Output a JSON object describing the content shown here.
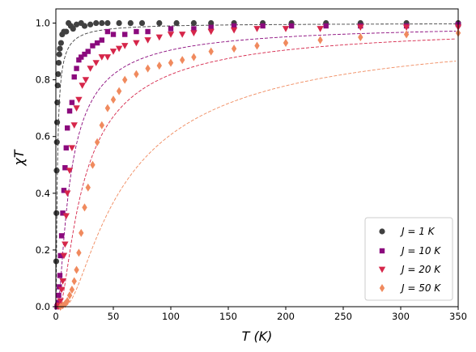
{
  "chart_data": {
    "type": "scatter",
    "xlabel": "T (K)",
    "ylabel": "χT",
    "xlim": [
      0,
      350
    ],
    "ylim": [
      0,
      1.05
    ],
    "xticks": [
      0,
      50,
      100,
      150,
      200,
      250,
      300,
      350
    ],
    "yticks": [
      0.0,
      0.2,
      0.4,
      0.6,
      0.8,
      1.0
    ],
    "grid": false,
    "legend_position": "bottom-right",
    "series": [
      {
        "name": "J = 1 K",
        "J": 1,
        "marker": "circle",
        "color": "#404040",
        "x": [
          0.3,
          0.5,
          0.7,
          0.9,
          1.1,
          1.3,
          1.6,
          2.0,
          2.5,
          3.0,
          3.5,
          4.5,
          5.5,
          7,
          9,
          11,
          13,
          15,
          18,
          22,
          25,
          30,
          35,
          40,
          45,
          55,
          65,
          75,
          90,
          105,
          120,
          135,
          155,
          180,
          205,
          235,
          265,
          305,
          350
        ],
        "y": [
          0.16,
          0.33,
          0.48,
          0.58,
          0.65,
          0.72,
          0.78,
          0.82,
          0.86,
          0.89,
          0.91,
          0.93,
          0.96,
          0.97,
          0.97,
          1.0,
          0.99,
          0.98,
          0.995,
          1.0,
          0.99,
          0.995,
          1.0,
          1.0,
          1.0,
          1.0,
          1.0,
          1.0,
          1.0,
          1.0,
          1.0,
          1.0,
          1.0,
          1.0,
          1.0,
          1.0,
          1.0,
          1.0,
          1.0
        ]
      },
      {
        "name": "J = 10 K",
        "J": 10,
        "marker": "square",
        "color": "#8b0a7d",
        "x": [
          1.0,
          1.5,
          2.0,
          2.5,
          3.0,
          3.5,
          4.0,
          5.0,
          6.0,
          7.0,
          8.0,
          9.0,
          10,
          12,
          14,
          16,
          18,
          20,
          22,
          25,
          28,
          32,
          36,
          40,
          45,
          50,
          60,
          70,
          80,
          100,
          120,
          135,
          155,
          180,
          205,
          235,
          265,
          305,
          350
        ],
        "y": [
          0.0,
          0.005,
          0.015,
          0.04,
          0.07,
          0.11,
          0.18,
          0.25,
          0.33,
          0.41,
          0.49,
          0.56,
          0.63,
          0.69,
          0.72,
          0.81,
          0.84,
          0.87,
          0.88,
          0.89,
          0.9,
          0.92,
          0.93,
          0.94,
          0.97,
          0.96,
          0.96,
          0.97,
          0.97,
          0.98,
          0.98,
          0.985,
          0.99,
          0.99,
          0.99,
          0.99,
          0.99,
          0.99,
          0.995
        ]
      },
      {
        "name": "J = 20 K",
        "J": 20,
        "marker": "triangle-down",
        "color": "#d6264a",
        "x": [
          2,
          3,
          4,
          5,
          6,
          7,
          8,
          9,
          10,
          12,
          14,
          16,
          18,
          20,
          23,
          26,
          30,
          35,
          40,
          45,
          50,
          55,
          60,
          70,
          80,
          90,
          100,
          110,
          120,
          135,
          155,
          175,
          200,
          230,
          265,
          305,
          350
        ],
        "y": [
          0.0,
          0.005,
          0.02,
          0.06,
          0.09,
          0.18,
          0.22,
          0.32,
          0.4,
          0.48,
          0.56,
          0.64,
          0.7,
          0.73,
          0.78,
          0.8,
          0.84,
          0.86,
          0.88,
          0.88,
          0.9,
          0.91,
          0.92,
          0.93,
          0.94,
          0.95,
          0.96,
          0.96,
          0.965,
          0.97,
          0.975,
          0.98,
          0.98,
          0.98,
          0.985,
          0.985,
          0.985
        ]
      },
      {
        "name": "J = 50 K",
        "J": 50,
        "marker": "diamond",
        "color": "#f08a5e",
        "x": [
          4,
          6,
          8,
          10,
          12,
          14,
          16,
          18,
          20,
          22,
          25,
          28,
          32,
          36,
          40,
          45,
          50,
          55,
          60,
          70,
          80,
          90,
          100,
          110,
          120,
          135,
          155,
          175,
          200,
          230,
          265,
          305,
          350
        ],
        "y": [
          0.0,
          0.005,
          0.01,
          0.02,
          0.04,
          0.06,
          0.09,
          0.13,
          0.19,
          0.26,
          0.35,
          0.42,
          0.5,
          0.58,
          0.64,
          0.7,
          0.73,
          0.76,
          0.8,
          0.82,
          0.84,
          0.85,
          0.86,
          0.87,
          0.88,
          0.9,
          0.91,
          0.92,
          0.93,
          0.94,
          0.95,
          0.96,
          0.965
        ]
      }
    ]
  }
}
